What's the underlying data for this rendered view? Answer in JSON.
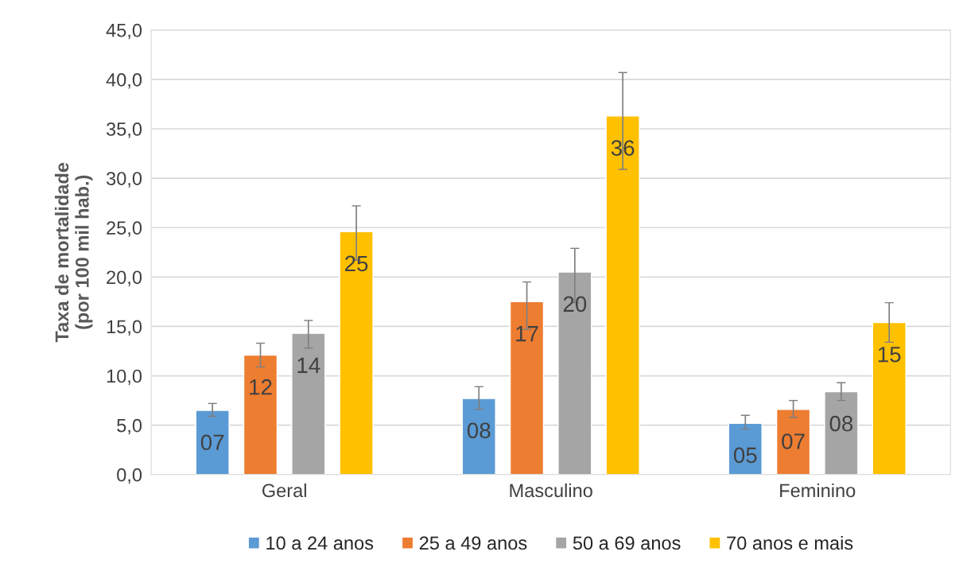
{
  "chart_data": {
    "type": "bar",
    "ylabel": "Taxa de mortalidade\n(por 100 mil hab.)",
    "categories": [
      "Geral",
      "Masculino",
      "Feminino"
    ],
    "series": [
      {
        "name": "10 a 24 anos",
        "color": "#5b9bd5",
        "values": [
          6.5,
          7.7,
          5.2
        ],
        "errors": [
          [
            5.9,
            7.2
          ],
          [
            6.6,
            8.9
          ],
          [
            4.6,
            6.0
          ]
        ],
        "value_labels": [
          "07",
          "08",
          "05"
        ]
      },
      {
        "name": "25 a 49 anos",
        "color": "#ed7d31",
        "values": [
          12.1,
          17.5,
          6.6
        ],
        "errors": [
          [
            10.9,
            13.3
          ],
          [
            14.7,
            19.5
          ],
          [
            5.8,
            7.5
          ]
        ],
        "value_labels": [
          "12",
          "17",
          "07"
        ]
      },
      {
        "name": "50 a 69 anos",
        "color": "#a5a5a5",
        "values": [
          14.3,
          20.5,
          8.4
        ],
        "errors": [
          [
            12.8,
            15.6
          ],
          [
            17.4,
            22.9
          ],
          [
            7.5,
            9.3
          ]
        ],
        "value_labels": [
          "14",
          "20",
          "08"
        ]
      },
      {
        "name": "70 anos e mais",
        "color": "#ffc000",
        "values": [
          24.6,
          36.3,
          15.4
        ],
        "errors": [
          [
            21.7,
            27.2
          ],
          [
            30.9,
            40.7
          ],
          [
            13.4,
            17.4
          ]
        ],
        "value_labels": [
          "25",
          "36",
          "15"
        ]
      }
    ],
    "ylim": [
      0,
      45
    ],
    "yticks": [
      {
        "value": 0,
        "label": "0,0"
      },
      {
        "value": 5,
        "label": "5,0"
      },
      {
        "value": 10,
        "label": "10,0"
      },
      {
        "value": 15,
        "label": "15,0"
      },
      {
        "value": 20,
        "label": "20,0"
      },
      {
        "value": 25,
        "label": "25,0"
      },
      {
        "value": 30,
        "label": "30,0"
      },
      {
        "value": 35,
        "label": "35,0"
      },
      {
        "value": 40,
        "label": "40,0"
      },
      {
        "value": 45,
        "label": "45,0"
      }
    ],
    "grid": "y",
    "legend": "bottom"
  }
}
